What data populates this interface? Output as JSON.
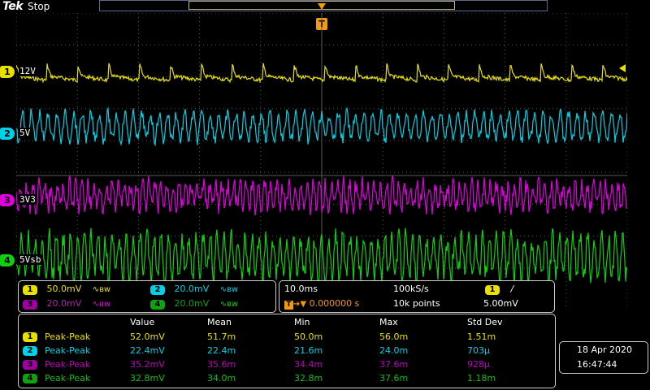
{
  "top": {
    "brand": "Tek",
    "state": "Stop"
  },
  "trigger": {
    "marker": "T"
  },
  "channels": [
    {
      "id": "1",
      "label": "12V",
      "color": "#e8e000",
      "scale": "50.0mV",
      "bw": "∿ʙw"
    },
    {
      "id": "2",
      "label": "5V",
      "color": "#00d0e8",
      "scale": "20.0mV",
      "bw": "∿ʙw"
    },
    {
      "id": "3",
      "label": "3V3",
      "color": "#e000e0",
      "scale": "20.0mV",
      "bw": "∿ʙw"
    },
    {
      "id": "4",
      "label": "5Vsb",
      "color": "#10d010",
      "scale": "20.0mV",
      "bw": "∿ʙw"
    }
  ],
  "timebase": {
    "scale": "10.0ms",
    "rate": "100kS/s",
    "position": "0.000000 s",
    "points": "10k points"
  },
  "trigger_info": {
    "channel": "1",
    "slope": "/",
    "level": "5.00mV"
  },
  "measurements": {
    "headers": [
      "Value",
      "Mean",
      "Min",
      "Max",
      "Std Dev"
    ],
    "rows": [
      {
        "ch": "1",
        "type": "Peak-Peak",
        "value": "52.0mV",
        "mean": "51.7m",
        "min": "50.0m",
        "max": "56.0m",
        "std": "1.51m"
      },
      {
        "ch": "2",
        "type": "Peak-Peak",
        "value": "22.4mV",
        "mean": "22.4m",
        "min": "21.6m",
        "max": "24.0m",
        "std": "703µ"
      },
      {
        "ch": "3",
        "type": "Peak-Peak",
        "value": "35.2mV",
        "mean": "35.6m",
        "min": "34.4m",
        "max": "37.6m",
        "std": "928µ"
      },
      {
        "ch": "4",
        "type": "Peak-Peak",
        "value": "32.8mV",
        "mean": "34.0m",
        "min": "32.8m",
        "max": "37.6m",
        "std": "1.18m"
      }
    ]
  },
  "datetime": {
    "date": "18 Apr  2020",
    "time": "16:47:44"
  }
}
